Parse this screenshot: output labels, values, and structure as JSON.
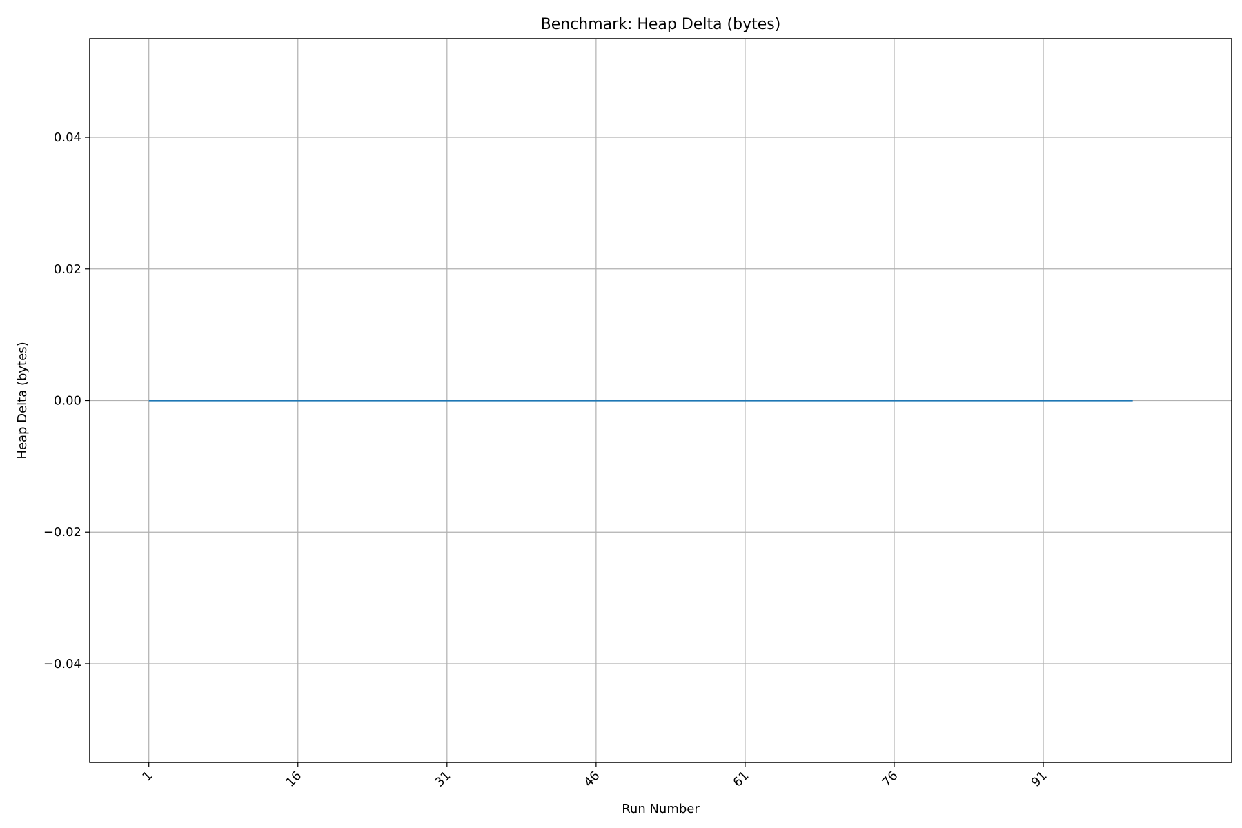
{
  "chart_data": {
    "type": "line",
    "title": "Benchmark: Heap Delta (bytes)",
    "xlabel": "Run Number",
    "ylabel": "Heap Delta (bytes)",
    "xlim": [
      -4.95,
      109.95
    ],
    "ylim": [
      -0.055,
      0.055
    ],
    "grid": true,
    "x_ticks": [
      1,
      16,
      31,
      46,
      61,
      76,
      91
    ],
    "x_tick_labels": [
      "1",
      "16",
      "31",
      "46",
      "61",
      "76",
      "91"
    ],
    "y_ticks": [
      -0.04,
      -0.02,
      0.0,
      0.02,
      0.04
    ],
    "y_tick_labels": [
      "−0.04",
      "−0.02",
      "0.00",
      "0.02",
      "0.04"
    ],
    "series": [
      {
        "name": "Heap Delta",
        "color": "#1f77b4",
        "x_start": 1,
        "x_end": 100,
        "values": [
          0,
          0,
          0,
          0,
          0,
          0,
          0,
          0,
          0,
          0,
          0,
          0,
          0,
          0,
          0,
          0,
          0,
          0,
          0,
          0,
          0,
          0,
          0,
          0,
          0,
          0,
          0,
          0,
          0,
          0,
          0,
          0,
          0,
          0,
          0,
          0,
          0,
          0,
          0,
          0,
          0,
          0,
          0,
          0,
          0,
          0,
          0,
          0,
          0,
          0,
          0,
          0,
          0,
          0,
          0,
          0,
          0,
          0,
          0,
          0,
          0,
          0,
          0,
          0,
          0,
          0,
          0,
          0,
          0,
          0,
          0,
          0,
          0,
          0,
          0,
          0,
          0,
          0,
          0,
          0,
          0,
          0,
          0,
          0,
          0,
          0,
          0,
          0,
          0,
          0,
          0,
          0,
          0,
          0,
          0,
          0,
          0,
          0,
          0,
          0
        ]
      }
    ]
  }
}
